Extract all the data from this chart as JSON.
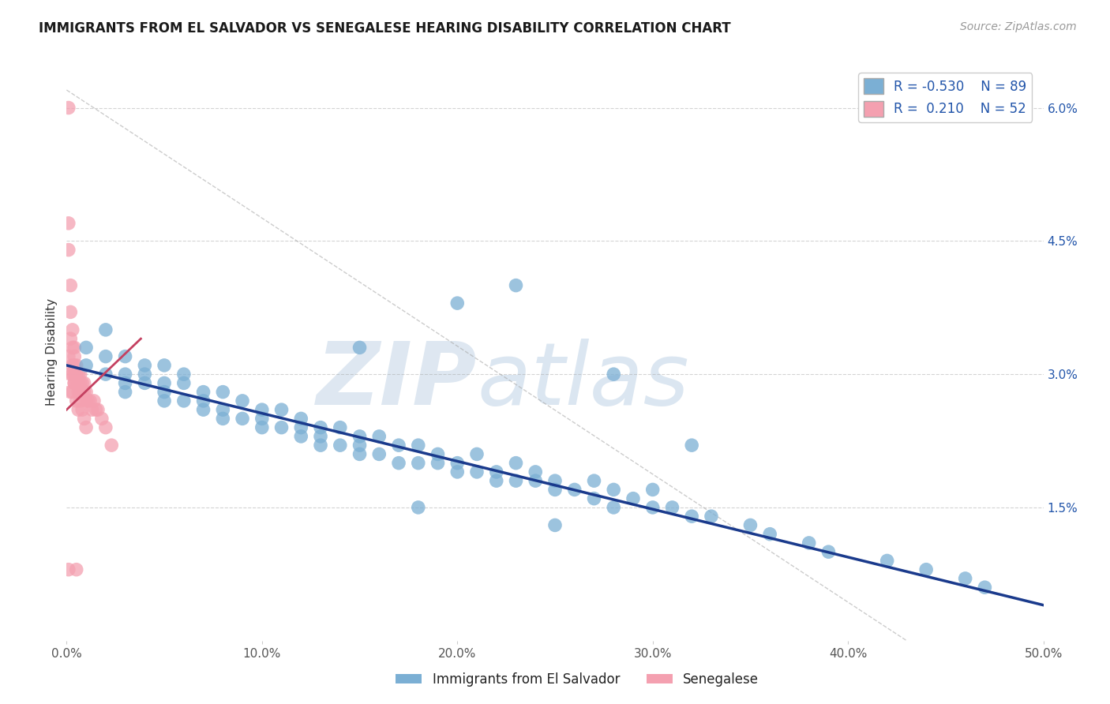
{
  "title": "IMMIGRANTS FROM EL SALVADOR VS SENEGALESE HEARING DISABILITY CORRELATION CHART",
  "source": "Source: ZipAtlas.com",
  "ylabel": "Hearing Disability",
  "xlim": [
    0.0,
    0.5
  ],
  "ylim": [
    0.0,
    0.065
  ],
  "xticks": [
    0.0,
    0.1,
    0.2,
    0.3,
    0.4,
    0.5
  ],
  "xticklabels": [
    "0.0%",
    "10.0%",
    "20.0%",
    "30.0%",
    "40.0%",
    "50.0%"
  ],
  "yticks_right": [
    0.015,
    0.03,
    0.045,
    0.06
  ],
  "yticklabels_right": [
    "1.5%",
    "3.0%",
    "4.5%",
    "6.0%"
  ],
  "blue_R": -0.53,
  "blue_N": 89,
  "pink_R": 0.21,
  "pink_N": 52,
  "blue_color": "#7bafd4",
  "pink_color": "#f4a0b0",
  "blue_line_color": "#1a3a8c",
  "pink_line_color": "#c44060",
  "legend_blue_label": "Immigrants from El Salvador",
  "legend_pink_label": "Senegalese",
  "watermark": "ZIPatlas",
  "background_color": "#ffffff",
  "blue_scatter_x": [
    0.01,
    0.01,
    0.02,
    0.02,
    0.02,
    0.03,
    0.03,
    0.03,
    0.03,
    0.04,
    0.04,
    0.04,
    0.05,
    0.05,
    0.05,
    0.05,
    0.06,
    0.06,
    0.06,
    0.07,
    0.07,
    0.07,
    0.08,
    0.08,
    0.08,
    0.09,
    0.09,
    0.1,
    0.1,
    0.1,
    0.11,
    0.11,
    0.12,
    0.12,
    0.12,
    0.13,
    0.13,
    0.13,
    0.14,
    0.14,
    0.15,
    0.15,
    0.15,
    0.16,
    0.16,
    0.17,
    0.17,
    0.18,
    0.18,
    0.19,
    0.19,
    0.2,
    0.2,
    0.21,
    0.21,
    0.22,
    0.22,
    0.23,
    0.23,
    0.24,
    0.24,
    0.25,
    0.25,
    0.26,
    0.27,
    0.27,
    0.28,
    0.28,
    0.29,
    0.3,
    0.3,
    0.31,
    0.32,
    0.33,
    0.35,
    0.36,
    0.38,
    0.39,
    0.42,
    0.44,
    0.46,
    0.47,
    0.2,
    0.23,
    0.15,
    0.28,
    0.32,
    0.18,
    0.25
  ],
  "blue_scatter_y": [
    0.031,
    0.033,
    0.03,
    0.032,
    0.035,
    0.028,
    0.03,
    0.032,
    0.029,
    0.031,
    0.029,
    0.03,
    0.027,
    0.029,
    0.028,
    0.031,
    0.027,
    0.029,
    0.03,
    0.026,
    0.028,
    0.027,
    0.026,
    0.028,
    0.025,
    0.025,
    0.027,
    0.025,
    0.026,
    0.024,
    0.024,
    0.026,
    0.024,
    0.025,
    0.023,
    0.023,
    0.024,
    0.022,
    0.022,
    0.024,
    0.022,
    0.023,
    0.021,
    0.021,
    0.023,
    0.022,
    0.02,
    0.02,
    0.022,
    0.02,
    0.021,
    0.02,
    0.019,
    0.019,
    0.021,
    0.019,
    0.018,
    0.018,
    0.02,
    0.018,
    0.019,
    0.018,
    0.017,
    0.017,
    0.016,
    0.018,
    0.017,
    0.015,
    0.016,
    0.015,
    0.017,
    0.015,
    0.014,
    0.014,
    0.013,
    0.012,
    0.011,
    0.01,
    0.009,
    0.008,
    0.007,
    0.006,
    0.038,
    0.04,
    0.033,
    0.03,
    0.022,
    0.015,
    0.013
  ],
  "pink_scatter_x": [
    0.001,
    0.001,
    0.001,
    0.002,
    0.002,
    0.002,
    0.003,
    0.003,
    0.003,
    0.004,
    0.004,
    0.004,
    0.004,
    0.005,
    0.005,
    0.005,
    0.006,
    0.006,
    0.006,
    0.007,
    0.007,
    0.007,
    0.008,
    0.008,
    0.009,
    0.009,
    0.01,
    0.01,
    0.011,
    0.012,
    0.013,
    0.014,
    0.015,
    0.016,
    0.018,
    0.02,
    0.023,
    0.001,
    0.002,
    0.003,
    0.004,
    0.005,
    0.006,
    0.007,
    0.008,
    0.009,
    0.01,
    0.002,
    0.003,
    0.004,
    0.001,
    0.005
  ],
  "pink_scatter_y": [
    0.06,
    0.044,
    0.032,
    0.034,
    0.03,
    0.028,
    0.033,
    0.03,
    0.028,
    0.031,
    0.029,
    0.032,
    0.03,
    0.029,
    0.031,
    0.03,
    0.029,
    0.03,
    0.028,
    0.03,
    0.029,
    0.028,
    0.029,
    0.028,
    0.028,
    0.029,
    0.027,
    0.028,
    0.027,
    0.027,
    0.026,
    0.027,
    0.026,
    0.026,
    0.025,
    0.024,
    0.022,
    0.047,
    0.04,
    0.035,
    0.033,
    0.027,
    0.026,
    0.027,
    0.026,
    0.025,
    0.024,
    0.037,
    0.031,
    0.029,
    0.008,
    0.008
  ],
  "blue_trend_x": [
    0.0,
    0.5
  ],
  "blue_trend_y": [
    0.031,
    0.004
  ],
  "pink_trend_x": [
    0.0,
    0.038
  ],
  "pink_trend_y": [
    0.026,
    0.034
  ],
  "diag_line_x": [
    0.0,
    0.43
  ],
  "diag_line_y": [
    0.062,
    0.0
  ]
}
